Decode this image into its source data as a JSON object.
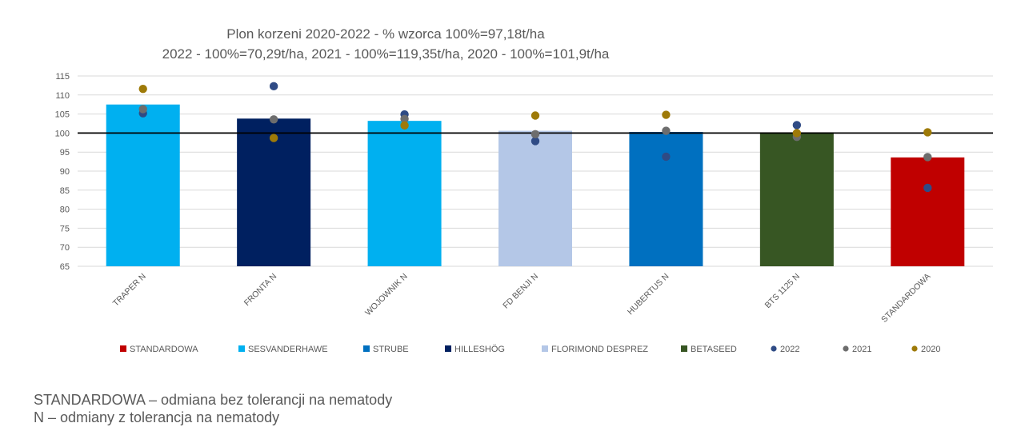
{
  "chart_data": {
    "type": "bar",
    "title_lines": [
      "Plon korzeni 2020-2022 - % wzorca 100%=97,18t/ha",
      "2022 - 100%=70,29t/ha, 2021 - 100%=119,35t/ha, 2020 - 100%=101,9t/ha"
    ],
    "categories": [
      "TRAPER N",
      "FRONTA N",
      "WOJOWNIK N",
      "FD BENJI N",
      "HUBERTUS N",
      "BTS 1125 N",
      "STANDARDOWA"
    ],
    "values": [
      107.5,
      103.8,
      103.2,
      100.6,
      100.3,
      100.2,
      93.6
    ],
    "bar_groups": [
      "SESVANDERHAWE",
      "HILLESHÖG",
      "SESVANDERHAWE",
      "FLORIMOND DESPREZ",
      "STRUBE",
      "BETASEED",
      "STANDARDOWA"
    ],
    "ylim": [
      65,
      115
    ],
    "yticks": [
      "65",
      "70",
      "75",
      "80",
      "85",
      "90",
      "95",
      "100",
      "105",
      "110",
      "115"
    ],
    "reference_line": 100,
    "points": [
      {
        "name": "2022",
        "color": "#2F4B85",
        "values": [
          105.2,
          112.3,
          104.9,
          97.9,
          93.8,
          102.1,
          85.6
        ]
      },
      {
        "name": "2021",
        "color": "#6D6D6D",
        "values": [
          106.3,
          103.6,
          103.7,
          99.7,
          100.6,
          99.0,
          93.7
        ]
      },
      {
        "name": "2020",
        "color": "#9E7A08",
        "values": [
          111.6,
          98.7,
          102.0,
          104.6,
          104.8,
          100.0,
          100.2
        ]
      }
    ],
    "legend": [
      {
        "label": "STANDARDOWA",
        "color": "#C00000",
        "shape": "square"
      },
      {
        "label": "SESVANDERHAWE",
        "color": "#00B0F0",
        "shape": "square"
      },
      {
        "label": "STRUBE",
        "color": "#0070C0",
        "shape": "square"
      },
      {
        "label": "HILLESHÖG",
        "color": "#002060",
        "shape": "square"
      },
      {
        "label": "FLORIMOND DESPREZ",
        "color": "#B4C7E7",
        "shape": "square"
      },
      {
        "label": "BETASEED",
        "color": "#375623",
        "shape": "square"
      },
      {
        "label": "2022",
        "color": "#2F4B85",
        "shape": "circle"
      },
      {
        "label": "2021",
        "color": "#6D6D6D",
        "shape": "circle"
      },
      {
        "label": "2020",
        "color": "#9E7A08",
        "shape": "circle"
      }
    ],
    "group_colors": {
      "STANDARDOWA": "#C00000",
      "SESVANDERHAWE": "#00B0F0",
      "STRUBE": "#0070C0",
      "HILLESHÖG": "#002060",
      "FLORIMOND DESPREZ": "#B4C7E7",
      "BETASEED": "#375623"
    },
    "grid": true,
    "legend_position": "bottom"
  },
  "notes": [
    "STANDARDOWA – odmiana bez tolerancji na nematody",
    "N – odmiany z tolerancja na nematody"
  ]
}
